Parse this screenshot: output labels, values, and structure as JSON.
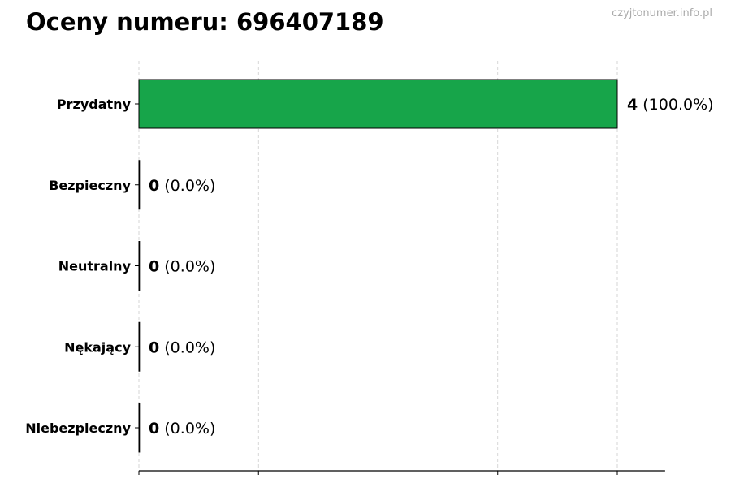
{
  "title": "Oceny numeru: 696407189",
  "watermark": "czyjtonumer.info.pl",
  "chart_data": {
    "type": "bar",
    "orientation": "horizontal",
    "categories": [
      "Przydatny",
      "Bezpieczny",
      "Neutralny",
      "Nękający",
      "Niebezpieczny"
    ],
    "values": [
      4,
      0,
      0,
      0,
      0
    ],
    "data_labels": [
      {
        "count": "4",
        "percent": "(100.0%)"
      },
      {
        "count": "0",
        "percent": "(0.0%)"
      },
      {
        "count": "0",
        "percent": "(0.0%)"
      },
      {
        "count": "0",
        "percent": "(0.0%)"
      },
      {
        "count": "0",
        "percent": "(0.0%)"
      }
    ],
    "xlim": [
      0,
      4.4
    ],
    "xticks": [
      0,
      1,
      2,
      3,
      4
    ],
    "xtick_labels_shown": false,
    "grid": "vertical dashed",
    "bar_color": "#17a54a",
    "xlabel": "",
    "ylabel": ""
  }
}
